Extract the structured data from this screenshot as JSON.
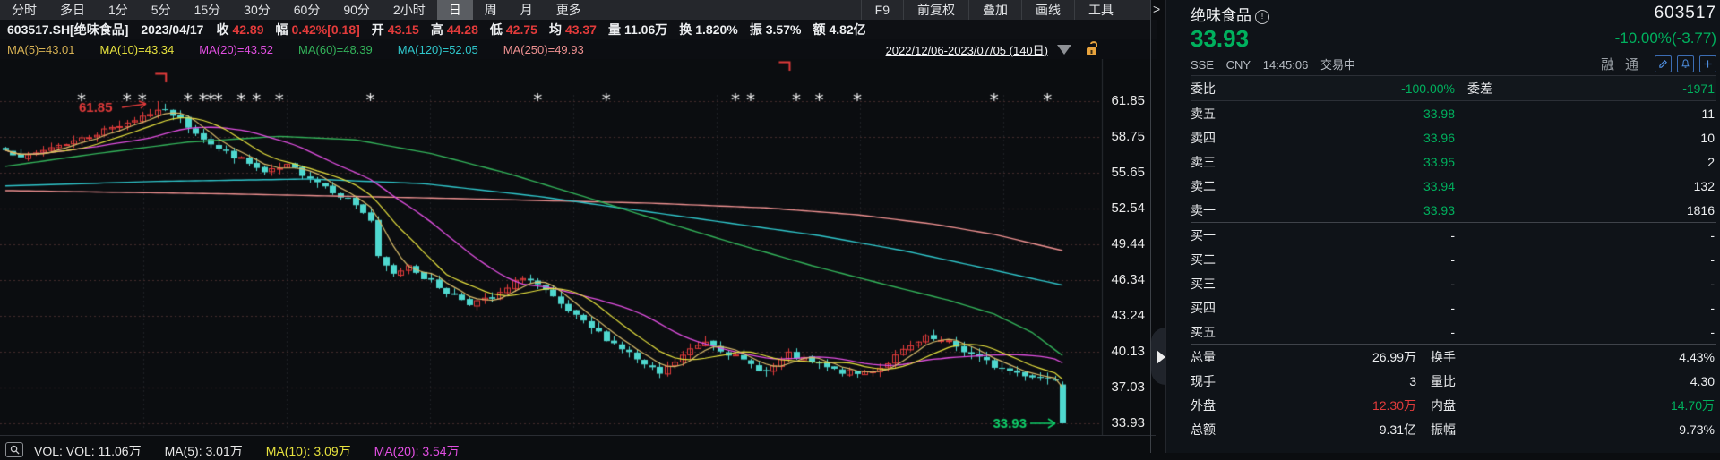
{
  "colors": {
    "up": "#e23b3b",
    "down": "#4fd8cf",
    "red": "#e23b3b",
    "green": "#00b15e",
    "green_bright": "#0fd06a",
    "grid": "rgba(160,95,95,0.38)",
    "vgrid": "rgba(125,125,140,0.18)",
    "ma5": "#d8bc6a",
    "ma10": "#e6e13e",
    "ma20": "#e24fe2",
    "ma60": "#33b35a",
    "ma120": "#2fc6cb",
    "ma250": "#ef9191",
    "lock": "#e8a33d",
    "asterisk": "#f0f0f0"
  },
  "toolbar": {
    "tabs": [
      "分时",
      "多日",
      "1分",
      "5分",
      "15分",
      "30分",
      "60分",
      "90分",
      "2小时",
      "日",
      "周",
      "月",
      "更多"
    ],
    "active": "日",
    "tools": [
      "F9",
      "前复权",
      "叠加",
      "画线",
      "工具"
    ],
    "collapse": ">"
  },
  "info_bar": {
    "symbol": "603517.SH[绝味食品]",
    "date": "2023/04/17",
    "fields": [
      {
        "label": "收",
        "value": "42.89",
        "color": "red"
      },
      {
        "label": "幅",
        "value": "0.42%[0.18]",
        "color": "red"
      },
      {
        "label": "开",
        "value": "43.15",
        "color": "red"
      },
      {
        "label": "高",
        "value": "44.28",
        "color": "red"
      },
      {
        "label": "低",
        "value": "42.75",
        "color": "red"
      },
      {
        "label": "均",
        "value": "43.37",
        "color": "red"
      },
      {
        "label": "量",
        "value": "11.06万",
        "color": "white"
      },
      {
        "label": "换",
        "value": "1.820%",
        "color": "white"
      },
      {
        "label": "振",
        "value": "3.57%",
        "color": "white"
      },
      {
        "label": "额",
        "value": "4.82亿",
        "color": "white"
      }
    ]
  },
  "ma_bar": {
    "items": [
      {
        "text": "MA(5)=43.01",
        "color": "#d8b254"
      },
      {
        "text": "MA(10)=43.34",
        "color": "#e6e13e"
      },
      {
        "text": "MA(20)=43.52",
        "color": "#e24fe2"
      },
      {
        "text": "MA(60)=48.39",
        "color": "#33b35a"
      },
      {
        "text": "MA(120)=52.05",
        "color": "#2fc6cb"
      },
      {
        "text": "MA(250)=49.93",
        "color": "#ef9191"
      }
    ],
    "range": "2022/12/06-2023/07/05 (140日)"
  },
  "chart": {
    "y_ticks": [
      "61.85",
      "58.75",
      "55.65",
      "52.54",
      "49.44",
      "46.34",
      "43.24",
      "40.13",
      "37.03",
      "33.93"
    ],
    "high_annotation": "61.85",
    "low_annotation": "33.93",
    "asterisk_indices": [
      10,
      16,
      18,
      24,
      26,
      27,
      28,
      31,
      33,
      36,
      48,
      70,
      79,
      96,
      98,
      104,
      107,
      112,
      130,
      137
    ],
    "bracket_marks": [
      {
        "index": 21,
        "y": 16
      },
      {
        "index": 103,
        "y": 3
      }
    ]
  },
  "chart_data": {
    "type": "candlestick",
    "title": "603517.SH 绝味食品 日K",
    "x_range": [
      "2022/12/06",
      "2023/07/05"
    ],
    "bars": 140,
    "ylim": [
      33.93,
      61.85
    ],
    "peak": {
      "index": 20,
      "high": 61.85
    },
    "last": {
      "open": 37.3,
      "high": 37.55,
      "low": 33.93,
      "close": 33.93
    },
    "close_anchors": [
      [
        0,
        57.6
      ],
      [
        3,
        57.0
      ],
      [
        6,
        57.9
      ],
      [
        10,
        58.6
      ],
      [
        14,
        59.6
      ],
      [
        17,
        60.3
      ],
      [
        20,
        61.1
      ],
      [
        22,
        60.7
      ],
      [
        25,
        59.2
      ],
      [
        28,
        57.7
      ],
      [
        31,
        56.8
      ],
      [
        34,
        55.6
      ],
      [
        37,
        56.2
      ],
      [
        40,
        55.3
      ],
      [
        43,
        54.1
      ],
      [
        46,
        52.9
      ],
      [
        48,
        51.5
      ],
      [
        49,
        48.2
      ],
      [
        51,
        46.8
      ],
      [
        53,
        47.7
      ],
      [
        55,
        46.6
      ],
      [
        58,
        45.3
      ],
      [
        61,
        44.4
      ],
      [
        64,
        44.7
      ],
      [
        66,
        45.6
      ],
      [
        68,
        46.7
      ],
      [
        70,
        45.9
      ],
      [
        73,
        44.1
      ],
      [
        76,
        42.6
      ],
      [
        79,
        41.3
      ],
      [
        82,
        40.0
      ],
      [
        84,
        38.9
      ],
      [
        86,
        38.2
      ],
      [
        88,
        39.3
      ],
      [
        90,
        40.3
      ],
      [
        92,
        41.1
      ],
      [
        94,
        40.4
      ],
      [
        97,
        39.3
      ],
      [
        100,
        38.4
      ],
      [
        103,
        39.9
      ],
      [
        106,
        39.2
      ],
      [
        109,
        38.5
      ],
      [
        112,
        38.2
      ],
      [
        115,
        38.8
      ],
      [
        118,
        40.2
      ],
      [
        121,
        41.3
      ],
      [
        124,
        40.9
      ],
      [
        127,
        39.9
      ],
      [
        130,
        38.9
      ],
      [
        133,
        38.3
      ],
      [
        136,
        37.9
      ],
      [
        138,
        37.7
      ],
      [
        139,
        33.93
      ]
    ],
    "ma60_anchors": [
      [
        0,
        56.2
      ],
      [
        12,
        57.3
      ],
      [
        24,
        58.3
      ],
      [
        36,
        58.8
      ],
      [
        46,
        58.5
      ],
      [
        56,
        57.3
      ],
      [
        66,
        55.6
      ],
      [
        76,
        53.6
      ],
      [
        86,
        51.5
      ],
      [
        96,
        49.5
      ],
      [
        106,
        47.6
      ],
      [
        116,
        45.9
      ],
      [
        124,
        44.6
      ],
      [
        130,
        43.4
      ],
      [
        135,
        41.8
      ],
      [
        139,
        39.8
      ]
    ],
    "ma120_anchors": [
      [
        0,
        54.5
      ],
      [
        20,
        54.9
      ],
      [
        40,
        55.1
      ],
      [
        55,
        54.7
      ],
      [
        70,
        53.6
      ],
      [
        83,
        52.4
      ],
      [
        95,
        51.3
      ],
      [
        107,
        50.2
      ],
      [
        118,
        48.9
      ],
      [
        130,
        47.2
      ],
      [
        139,
        45.9
      ]
    ],
    "ma250_anchors": [
      [
        0,
        54.1
      ],
      [
        30,
        53.8
      ],
      [
        60,
        53.4
      ],
      [
        85,
        53.0
      ],
      [
        100,
        52.6
      ],
      [
        112,
        52.0
      ],
      [
        122,
        51.2
      ],
      [
        130,
        50.3
      ],
      [
        139,
        48.9
      ]
    ]
  },
  "vol_bar": {
    "items": [
      {
        "text": "VOL: VOL: 11.06万",
        "color": "#e8e8e8"
      },
      {
        "text": "MA(5): 3.01万",
        "color": "#e8e8e8"
      },
      {
        "text": "MA(10): 3.09万",
        "color": "#e6e13e"
      },
      {
        "text": "MA(20): 3.54万",
        "color": "#e24fe2"
      }
    ]
  },
  "panel": {
    "name": "绝味食品",
    "info_icon": "!",
    "code": "603517",
    "price": "33.93",
    "change": "-10.00%(-3.77)",
    "exchange": "SSE",
    "currency": "CNY",
    "time": "14:45:06",
    "status": "交易中",
    "badges": [
      "融",
      "通"
    ],
    "weibi": {
      "label": "委比",
      "value": "-100.00%",
      "label2": "委差",
      "value2": "-1971"
    },
    "asks": [
      {
        "label": "卖五",
        "price": "33.98",
        "qty": "11"
      },
      {
        "label": "卖四",
        "price": "33.96",
        "qty": "10"
      },
      {
        "label": "卖三",
        "price": "33.95",
        "qty": "2"
      },
      {
        "label": "卖二",
        "price": "33.94",
        "qty": "132"
      },
      {
        "label": "卖一",
        "price": "33.93",
        "qty": "1816"
      }
    ],
    "bids": [
      {
        "label": "买一",
        "price": "-",
        "qty": "-"
      },
      {
        "label": "买二",
        "price": "-",
        "qty": "-"
      },
      {
        "label": "买三",
        "price": "-",
        "qty": "-"
      },
      {
        "label": "买四",
        "price": "-",
        "qty": "-"
      },
      {
        "label": "买五",
        "price": "-",
        "qty": "-"
      }
    ],
    "stats": [
      {
        "l1": "总量",
        "v1": "26.99万",
        "c1": "white",
        "l2": "换手",
        "v2": "4.43%",
        "c2": "white"
      },
      {
        "l1": "现手",
        "v1": "3",
        "c1": "white",
        "l2": "量比",
        "v2": "4.30",
        "c2": "white"
      },
      {
        "l1": "外盘",
        "v1": "12.30万",
        "c1": "red",
        "l2": "内盘",
        "v2": "14.70万",
        "c2": "green"
      },
      {
        "l1": "总额",
        "v1": "9.31亿",
        "c1": "white",
        "l2": "振幅",
        "v2": "9.73%",
        "c2": "white"
      }
    ]
  }
}
